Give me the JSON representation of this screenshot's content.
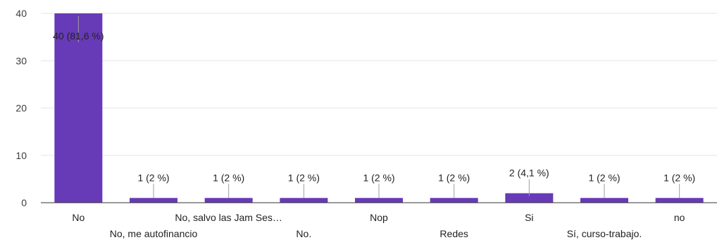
{
  "chart_data": {
    "type": "bar",
    "title": "",
    "xlabel": "",
    "ylabel": "",
    "ylim": [
      0,
      40
    ],
    "yticks": [
      0,
      10,
      20,
      30,
      40
    ],
    "grid": true,
    "bar_color": "#673ab7",
    "categories": [
      "No",
      "No, me autofinancio",
      "No, salvo las Jam Ses…",
      "No.",
      "Nop",
      "Redes",
      "Si",
      "Sí, curso-trabajo.",
      "no"
    ],
    "values": [
      40,
      1,
      1,
      1,
      1,
      1,
      2,
      1,
      1
    ],
    "data_labels": [
      "40 (81,6 %)",
      "1 (2 %)",
      "1 (2 %)",
      "1 (2 %)",
      "1 (2 %)",
      "1 (2 %)",
      "2 (4,1 %)",
      "1 (2 %)",
      "1 (2 %)"
    ]
  }
}
